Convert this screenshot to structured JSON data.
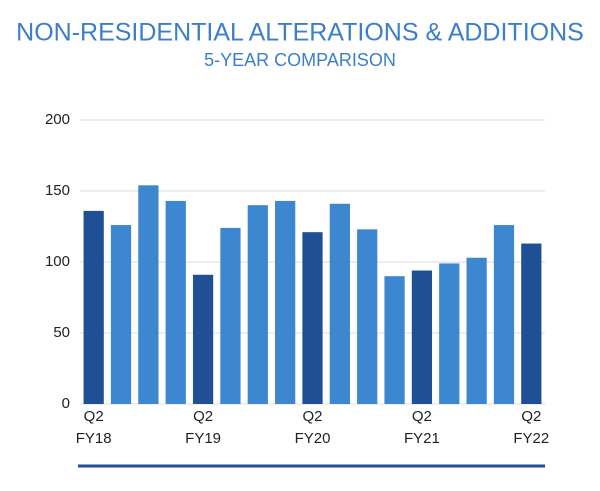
{
  "chart_data": {
    "type": "bar",
    "title": "NON-RESIDENTIAL ALTERATIONS & ADDITIONS",
    "subtitle": "5-YEAR COMPARISON",
    "categories": [
      "Q2\nFY18",
      null,
      null,
      null,
      "Q2\nFY19",
      null,
      null,
      null,
      "Q2\nFY20",
      null,
      null,
      null,
      "Q2\nFY21",
      null,
      null,
      null,
      "Q2\nFY22"
    ],
    "values": [
      136,
      126,
      154,
      143,
      91,
      124,
      140,
      143,
      121,
      141,
      123,
      90,
      94,
      99,
      103,
      126,
      113
    ],
    "colors": [
      "#1f4f95",
      "#3d87d0",
      "#3d87d0",
      "#3d87d0",
      "#1f4f95",
      "#3d87d0",
      "#3d87d0",
      "#3d87d0",
      "#1f4f95",
      "#3d87d0",
      "#3d87d0",
      "#3d87d0",
      "#1f4f95",
      "#3d87d0",
      "#3d87d0",
      "#3d87d0",
      "#1f4f95"
    ],
    "ylim": [
      0,
      200
    ],
    "yticks": [
      0,
      50,
      100,
      150,
      200
    ],
    "grid": true
  }
}
